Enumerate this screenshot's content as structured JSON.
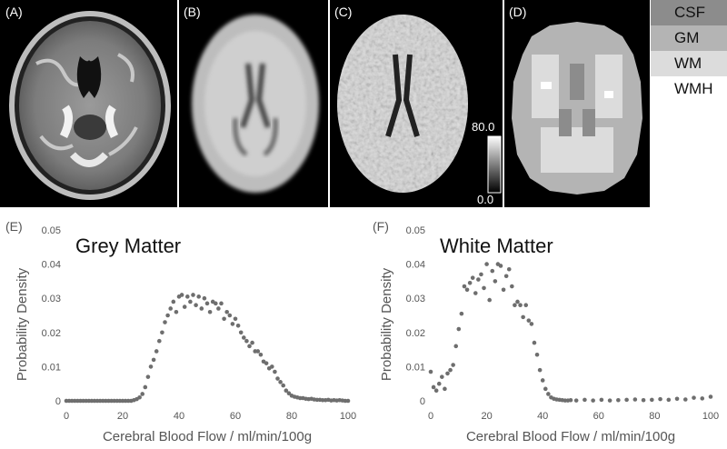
{
  "panels": {
    "a": {
      "label": "(A)"
    },
    "b": {
      "label": "(B)"
    },
    "c": {
      "label": "(C)",
      "colorbar_max": "80.0",
      "colorbar_min": "0.0"
    },
    "d": {
      "label": "(D)"
    }
  },
  "legend": {
    "items": [
      {
        "label": "CSF",
        "color": "#8c8c8c"
      },
      {
        "label": "GM",
        "color": "#b4b4b4"
      },
      {
        "label": "WM",
        "color": "#dcdcdc"
      },
      {
        "label": "WMH",
        "color": "#ffffff"
      }
    ]
  },
  "chart_data": [
    {
      "type": "scatter",
      "panel_label": "(E)",
      "title": "Grey Matter",
      "xlabel": "Cerebral Blood Flow / ml/min/100g",
      "ylabel": "Probability Density",
      "xlim": [
        0,
        100
      ],
      "ylim": [
        0,
        0.05
      ],
      "xticks": [
        "0",
        "20",
        "40",
        "60",
        "80",
        "100"
      ],
      "yticks": [
        "0",
        "0.01",
        "0.02",
        "0.03",
        "0.04",
        "0.05"
      ],
      "color": "#6e6e6e",
      "x": [
        0,
        1,
        2,
        3,
        4,
        5,
        6,
        7,
        8,
        9,
        10,
        11,
        12,
        13,
        14,
        15,
        16,
        17,
        18,
        19,
        20,
        21,
        22,
        23,
        24,
        25,
        26,
        27,
        28,
        29,
        30,
        31,
        32,
        33,
        34,
        35,
        36,
        37,
        38,
        39,
        40,
        41,
        42,
        43,
        44,
        45,
        46,
        47,
        48,
        49,
        50,
        51,
        52,
        53,
        54,
        55,
        56,
        57,
        58,
        59,
        60,
        61,
        62,
        63,
        64,
        65,
        66,
        67,
        68,
        69,
        70,
        71,
        72,
        73,
        74,
        75,
        76,
        77,
        78,
        79,
        80,
        81,
        82,
        83,
        84,
        85,
        86,
        87,
        88,
        89,
        90,
        91,
        92,
        93,
        94,
        95,
        96,
        97,
        98,
        99,
        100
      ],
      "y": [
        0,
        0,
        0,
        0,
        0,
        0,
        0,
        0,
        0,
        0,
        0,
        0,
        0,
        0,
        0,
        0,
        0,
        0,
        0,
        0,
        0,
        0,
        0,
        0,
        0.0002,
        0.0005,
        0.001,
        0.002,
        0.004,
        0.007,
        0.01,
        0.012,
        0.0145,
        0.0175,
        0.02,
        0.023,
        0.025,
        0.027,
        0.029,
        0.026,
        0.0305,
        0.031,
        0.0275,
        0.0305,
        0.029,
        0.031,
        0.028,
        0.0305,
        0.027,
        0.03,
        0.0285,
        0.026,
        0.029,
        0.0285,
        0.027,
        0.0285,
        0.024,
        0.026,
        0.025,
        0.0225,
        0.024,
        0.022,
        0.02,
        0.0185,
        0.0175,
        0.016,
        0.017,
        0.0145,
        0.0145,
        0.0135,
        0.0115,
        0.011,
        0.0095,
        0.01,
        0.0085,
        0.0065,
        0.0055,
        0.0045,
        0.003,
        0.0022,
        0.0015,
        0.0012,
        0.001,
        0.0008,
        0.0008,
        0.0006,
        0.0005,
        0.0006,
        0.0004,
        0.0003,
        0.0003,
        0.0002,
        0.0002,
        0.0003,
        0.0001,
        0.0002,
        0.0001,
        0.0002,
        0.0001,
        0.0,
        0.0
      ]
    },
    {
      "type": "scatter",
      "panel_label": "(F)",
      "title": "White Matter",
      "xlabel": "Cerebral Blood Flow / ml/min/100g",
      "ylabel": "Probability Density",
      "xlim": [
        0,
        100
      ],
      "ylim": [
        0,
        0.05
      ],
      "xticks": [
        "0",
        "20",
        "40",
        "60",
        "80",
        "100"
      ],
      "yticks": [
        "0",
        "0.01",
        "0.02",
        "0.03",
        "0.04",
        "0.05"
      ],
      "color": "#6e6e6e",
      "x": [
        0,
        1,
        2,
        3,
        4,
        5,
        6,
        7,
        8,
        9,
        10,
        11,
        12,
        13,
        14,
        15,
        16,
        17,
        18,
        19,
        20,
        21,
        22,
        23,
        24,
        25,
        26,
        27,
        28,
        29,
        30,
        31,
        32,
        33,
        34,
        35,
        36,
        37,
        38,
        39,
        40,
        41,
        42,
        43,
        44,
        45,
        46,
        47,
        48,
        49,
        50,
        52,
        55,
        58,
        61,
        64,
        67,
        70,
        73,
        76,
        79,
        82,
        85,
        88,
        91,
        94,
        97,
        100
      ],
      "y": [
        0.0085,
        0.004,
        0.003,
        0.005,
        0.007,
        0.0035,
        0.008,
        0.009,
        0.0105,
        0.016,
        0.021,
        0.0255,
        0.0335,
        0.0325,
        0.0345,
        0.036,
        0.0315,
        0.0355,
        0.037,
        0.033,
        0.04,
        0.0295,
        0.038,
        0.035,
        0.04,
        0.0395,
        0.0325,
        0.0365,
        0.0385,
        0.0335,
        0.028,
        0.029,
        0.028,
        0.0245,
        0.028,
        0.0235,
        0.0225,
        0.017,
        0.0135,
        0.009,
        0.006,
        0.0035,
        0.002,
        0.001,
        0.0006,
        0.0004,
        0.0003,
        0.0002,
        0.0001,
        0.0001,
        0.0002,
        0.0001,
        0.0003,
        0.0001,
        0.0003,
        0.0001,
        0.0002,
        0.0003,
        0.0004,
        0.0002,
        0.0003,
        0.0005,
        0.0003,
        0.0006,
        0.0004,
        0.0009,
        0.0007,
        0.0012
      ]
    }
  ]
}
